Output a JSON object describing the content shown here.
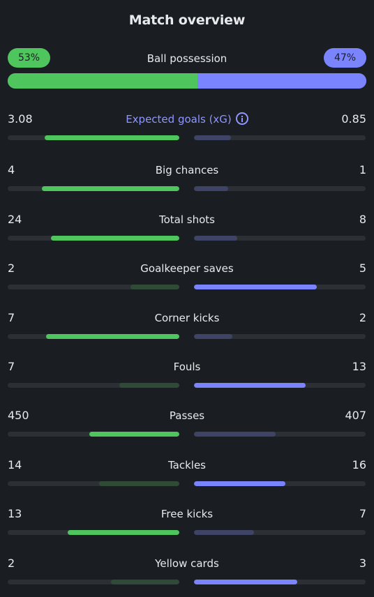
{
  "title": "Match overview",
  "colors": {
    "background": "#1a1d21",
    "home_accent": "#4fc55e",
    "away_accent": "#7b84ff",
    "home_dim": "#2f4a36",
    "away_dim": "#3f4466",
    "track": "#2c3035",
    "highlight_label": "#8f97ff"
  },
  "possession": {
    "label": "Ball possession",
    "home": "53%",
    "away": "47%",
    "home_value": 53
  },
  "stats": [
    {
      "key": "xg",
      "label": "Expected goals (xG)",
      "home": "3.08",
      "away": "0.85",
      "home_num": 3.08,
      "away_num": 0.85,
      "info_icon": true,
      "highlight": true
    },
    {
      "key": "big-chances",
      "label": "Big chances",
      "home": "4",
      "away": "1",
      "home_num": 4,
      "away_num": 1
    },
    {
      "key": "total-shots",
      "label": "Total shots",
      "home": "24",
      "away": "8",
      "home_num": 24,
      "away_num": 8
    },
    {
      "key": "goalkeeper-saves",
      "label": "Goalkeeper saves",
      "home": "2",
      "away": "5",
      "home_num": 2,
      "away_num": 5
    },
    {
      "key": "corner-kicks",
      "label": "Corner kicks",
      "home": "7",
      "away": "2",
      "home_num": 7,
      "away_num": 2
    },
    {
      "key": "fouls",
      "label": "Fouls",
      "home": "7",
      "away": "13",
      "home_num": 7,
      "away_num": 13
    },
    {
      "key": "passes",
      "label": "Passes",
      "home": "450",
      "away": "407",
      "home_num": 450,
      "away_num": 407
    },
    {
      "key": "tackles",
      "label": "Tackles",
      "home": "14",
      "away": "16",
      "home_num": 14,
      "away_num": 16
    },
    {
      "key": "free-kicks",
      "label": "Free kicks",
      "home": "13",
      "away": "7",
      "home_num": 13,
      "away_num": 7
    },
    {
      "key": "yellow-cards",
      "label": "Yellow cards",
      "home": "2",
      "away": "3",
      "home_num": 2,
      "away_num": 3
    }
  ]
}
